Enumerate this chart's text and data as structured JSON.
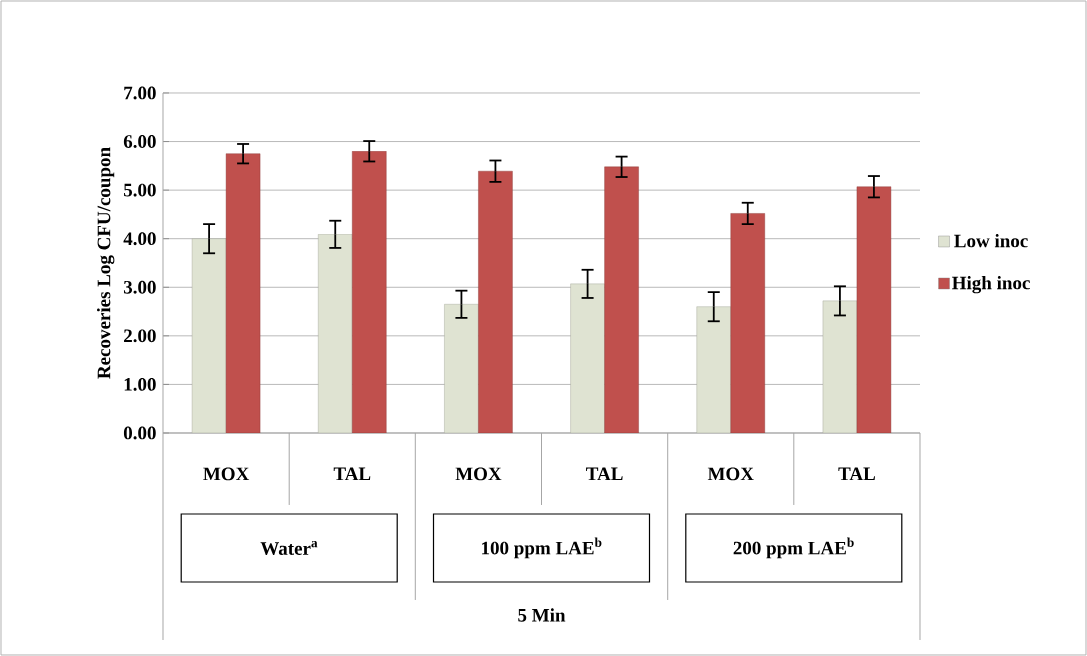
{
  "chart_data": {
    "type": "bar",
    "ylabel": "Recoveries Log CFU/coupon",
    "categories": [
      "MOX",
      "TAL",
      "MOX",
      "TAL",
      "MOX",
      "TAL"
    ],
    "series": [
      {
        "name": "Low inoc",
        "color": "#dfe3d2",
        "values": [
          4.0,
          4.09,
          2.65,
          3.07,
          2.6,
          2.72
        ],
        "errors": [
          0.3,
          0.28,
          0.28,
          0.29,
          0.3,
          0.3
        ]
      },
      {
        "name": "High inoc",
        "color": "#c0504d",
        "values": [
          5.75,
          5.8,
          5.39,
          5.48,
          4.52,
          5.07
        ],
        "errors": [
          0.2,
          0.21,
          0.22,
          0.21,
          0.22,
          0.22
        ]
      }
    ],
    "ylim": [
      0,
      7
    ],
    "yticks": [
      {
        "value": 0,
        "label": "0.00"
      },
      {
        "value": 1,
        "label": "1.00"
      },
      {
        "value": 2,
        "label": "2.00"
      },
      {
        "value": 3,
        "label": "3.00"
      },
      {
        "value": 4,
        "label": "4.00"
      },
      {
        "value": 5,
        "label": "5.00"
      },
      {
        "value": 6,
        "label": "6.00"
      },
      {
        "value": 7,
        "label": "7.00"
      }
    ],
    "grid": "y",
    "legend": "right",
    "annotations": [
      "Water$^{a}$",
      "100 ppm LAE$^{b}$",
      "200 ppm LAE$^{b}$",
      "5 Min"
    ]
  }
}
